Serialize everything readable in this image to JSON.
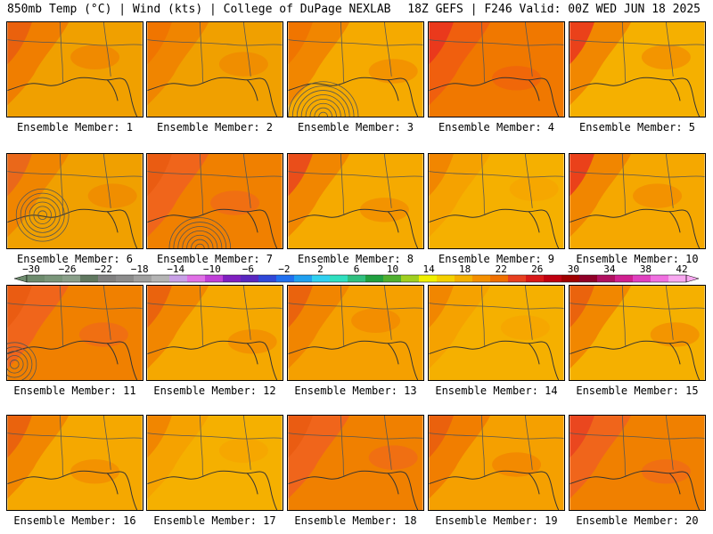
{
  "header": {
    "left": "850mb Temp (°C) | Wind (kts) | College of DuPage NEXLAB",
    "right": "18Z GEFS | F246 Valid: 00Z WED JUN 18 2025"
  },
  "colors": {
    "background": "#ffffff",
    "coast": "#333333",
    "contour": "#555555"
  },
  "panels": [
    {
      "label": "Ensemble Member: 1",
      "base": "#f0a000",
      "warm": "#f07800",
      "hot": "#e85a10"
    },
    {
      "label": "Ensemble Member: 2",
      "base": "#f0a000",
      "warm": "#f08000",
      "hot": "#f07000"
    },
    {
      "label": "Ensemble Member: 3",
      "base": "#f5aa00",
      "warm": "#f08000",
      "hot": "#f07000"
    },
    {
      "label": "Ensemble Member: 4",
      "base": "#f07800",
      "warm": "#f05a10",
      "hot": "#e83020"
    },
    {
      "label": "Ensemble Member: 5",
      "base": "#f5b000",
      "warm": "#f08000",
      "hot": "#e83020"
    },
    {
      "label": "Ensemble Member: 6",
      "base": "#f0a000",
      "warm": "#f08000",
      "hot": "#e86020"
    },
    {
      "label": "Ensemble Member: 7",
      "base": "#f08000",
      "warm": "#f06020",
      "hot": "#e85a10"
    },
    {
      "label": "Ensemble Member: 8",
      "base": "#f5aa00",
      "warm": "#f08000",
      "hot": "#e84020"
    },
    {
      "label": "Ensemble Member: 9",
      "base": "#f5b000",
      "warm": "#f5a000",
      "hot": "#f08000"
    },
    {
      "label": "Ensemble Member: 10",
      "base": "#f5a800",
      "warm": "#f08000",
      "hot": "#e83020"
    },
    {
      "label": "Ensemble Member: 11",
      "base": "#f08000",
      "warm": "#f06020",
      "hot": "#e85a10"
    },
    {
      "label": "Ensemble Member: 12",
      "base": "#f5a800",
      "warm": "#f08000",
      "hot": "#e85a10"
    },
    {
      "label": "Ensemble Member: 13",
      "base": "#f5a000",
      "warm": "#f08000",
      "hot": "#e85a10"
    },
    {
      "label": "Ensemble Member: 14",
      "base": "#f5b000",
      "warm": "#f5a000",
      "hot": "#f08000"
    },
    {
      "label": "Ensemble Member: 15",
      "base": "#f5b000",
      "warm": "#f08000",
      "hot": "#e85a10"
    },
    {
      "label": "Ensemble Member: 16",
      "base": "#f5a800",
      "warm": "#f08000",
      "hot": "#e85a10"
    },
    {
      "label": "Ensemble Member: 17",
      "base": "#f5b000",
      "warm": "#f5a000",
      "hot": "#f08000"
    },
    {
      "label": "Ensemble Member: 18",
      "base": "#f08000",
      "warm": "#f06020",
      "hot": "#e85a10"
    },
    {
      "label": "Ensemble Member: 19",
      "base": "#f5a000",
      "warm": "#f07800",
      "hot": "#e85a10"
    },
    {
      "label": "Ensemble Member: 20",
      "base": "#f08000",
      "warm": "#f06020",
      "hot": "#e84020"
    }
  ],
  "colorbar": {
    "labels": [
      "−30",
      "−26",
      "−22",
      "−18",
      "−14",
      "−10",
      "−6",
      "−2",
      "2",
      "6",
      "10",
      "14",
      "18",
      "22",
      "26",
      "30",
      "34",
      "38",
      "42"
    ],
    "colors": [
      "#6e8c6e",
      "#7a967a",
      "#8aa08a",
      "#607860",
      "#808080",
      "#8c8c8c",
      "#a0a0a0",
      "#b4b4b4",
      "#c8a0e6",
      "#e070e6",
      "#c040d8",
      "#8020c0",
      "#5a28c0",
      "#3048d8",
      "#2070f0",
      "#20a0f0",
      "#30d0f0",
      "#30e0c0",
      "#30c080",
      "#20a040",
      "#50b030",
      "#a0d020",
      "#f0f000",
      "#f5d000",
      "#f5b000",
      "#f59000",
      "#f07000",
      "#e84020",
      "#d81818",
      "#c00010",
      "#a00000",
      "#900028",
      "#b01060",
      "#d02090",
      "#e040c0",
      "#f070e0",
      "#f8a8f0"
    ]
  }
}
